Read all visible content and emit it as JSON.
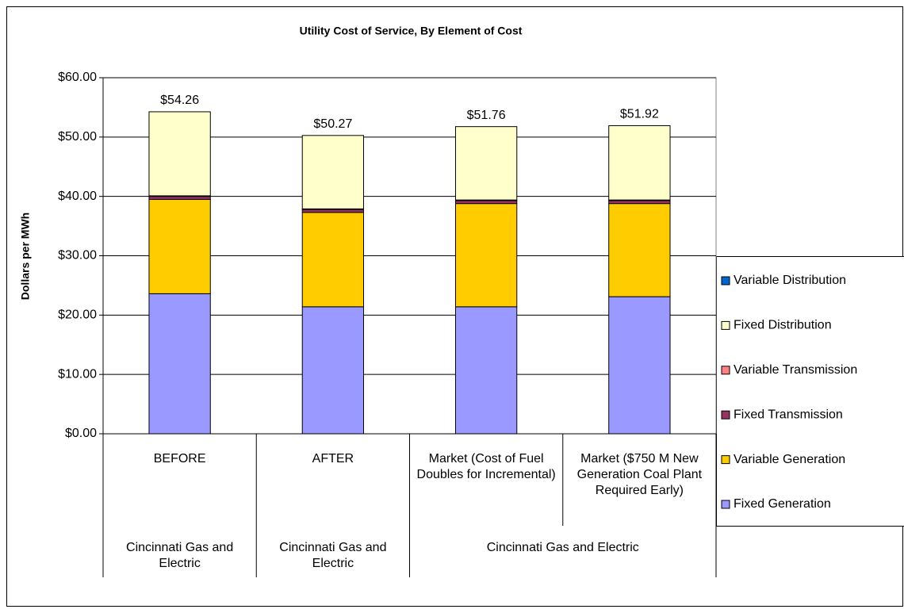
{
  "chart_data": {
    "type": "stacked_bar",
    "title": "Utility Cost of Service, By Element of Cost",
    "y_label": "Dollars per MWh",
    "categories": [
      "BEFORE",
      "AFTER",
      "Market (Cost of Fuel Doubles for Incremental)",
      "Market ($750 M New Generation Coal Plant Required Early)"
    ],
    "group_categories": [
      "Cincinnati Gas and Electric",
      "Cincinnati Gas and Electric",
      "Cincinnati Gas and Electric",
      null
    ],
    "series": [
      {
        "name": "Fixed Generation",
        "color": "#9999ff",
        "values": [
          23.6,
          21.4,
          21.4,
          23.1
        ]
      },
      {
        "name": "Variable Generation",
        "color": "#ffcc00",
        "values": [
          15.9,
          15.9,
          17.4,
          15.7
        ]
      },
      {
        "name": "Fixed Transmission",
        "color": "#993366",
        "values": [
          0.5,
          0.5,
          0.5,
          0.5
        ]
      },
      {
        "name": "Variable Transmission",
        "color": "#ff8080",
        "values": [
          0.1,
          0.1,
          0.1,
          0.1
        ]
      },
      {
        "name": "Fixed Distribution",
        "color": "#ffffcc",
        "values": [
          14.16,
          12.37,
          12.36,
          12.52
        ]
      },
      {
        "name": "Variable Distribution",
        "color": "#0066cc",
        "values": [
          0,
          0,
          0,
          0
        ]
      }
    ],
    "totals": [
      54.26,
      50.27,
      51.76,
      51.92
    ],
    "total_labels": [
      "$54.26",
      "$50.27",
      "$51.76",
      "$51.92"
    ],
    "ylim": [
      0,
      60
    ],
    "yticks": [
      {
        "value": 0,
        "label": "$0.00"
      },
      {
        "value": 10,
        "label": "$10.00"
      },
      {
        "value": 20,
        "label": "$20.00"
      },
      {
        "value": 30,
        "label": "$30.00"
      },
      {
        "value": 40,
        "label": "$40.00"
      },
      {
        "value": 50,
        "label": "$50.00"
      },
      {
        "value": 60,
        "label": "$60.00"
      }
    ],
    "grid": true,
    "legend": "right"
  }
}
